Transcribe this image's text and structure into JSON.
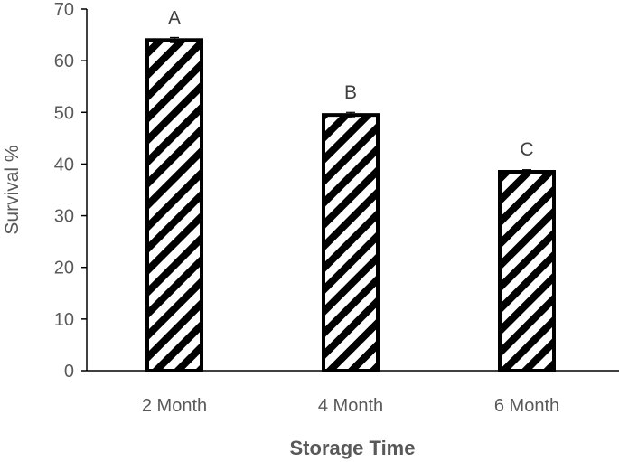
{
  "chart_data": {
    "type": "bar",
    "categories": [
      "2 Month",
      "4 Month",
      "6 Month"
    ],
    "values": [
      64,
      49.5,
      38.5
    ],
    "error": [
      0.5,
      0.5,
      0.4
    ],
    "significance_labels": [
      "A",
      "B",
      "C"
    ],
    "title": "",
    "xlabel": "Storage Time",
    "ylabel": "Survival %",
    "ylim": [
      0,
      70
    ],
    "yticks": [
      "0",
      "10",
      "20",
      "30",
      "40",
      "50",
      "60",
      "70"
    ],
    "grid": false,
    "legend": "none",
    "bar_fill": "diagonal-hatch",
    "colors": {
      "bar_outline": "#000000",
      "axis": "#000000",
      "text": "#595959"
    }
  }
}
